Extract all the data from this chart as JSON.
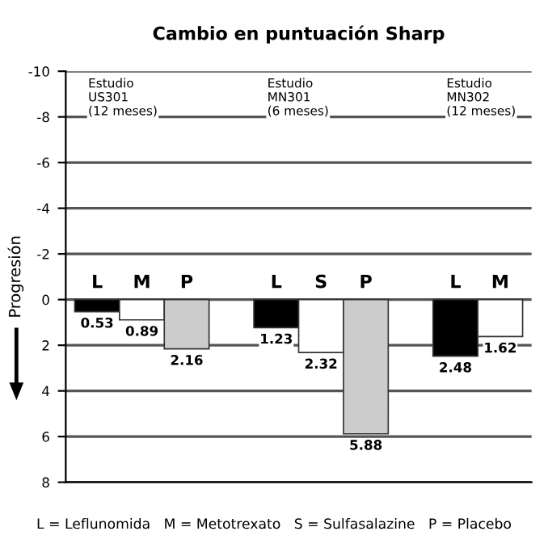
{
  "chart_data": {
    "type": "bar",
    "title": "Cambio en puntuación Sharp",
    "ylabel": "Progresión",
    "categories": [
      "L",
      "M",
      "P",
      null,
      "L",
      "S",
      "P",
      null,
      "L",
      "M"
    ],
    "values": [
      0.53,
      0.89,
      2.16,
      null,
      1.23,
      2.32,
      5.88,
      null,
      2.48,
      1.62
    ],
    "colors": [
      "#000000",
      "#ffffff",
      "#cccccc",
      null,
      "#000000",
      "#ffffff",
      "#cccccc",
      null,
      "#000000",
      "#ffffff"
    ],
    "data_labels": true,
    "ylim": [
      8,
      -10
    ],
    "yticks": [
      -10,
      -8,
      -6,
      -4,
      -2,
      0,
      2,
      4,
      6,
      8
    ],
    "grid": "y",
    "annotations": [
      "Estudio\nUS301\n(12 meses)",
      "Estudio\nMN301\n(6 meses)",
      "Estudio\nMN302\n(12 meses)",
      "L = Leflunomida   M = Metotrexato   S = Sulfasalazine   P = Placebo"
    ]
  }
}
